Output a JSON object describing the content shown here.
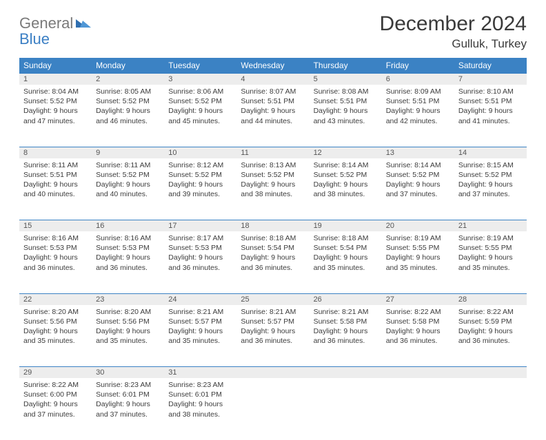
{
  "logo": {
    "line1": "General",
    "line2": "Blue",
    "text_color": "#7a7a7a",
    "accent_color": "#3b7fc4"
  },
  "title": "December 2024",
  "location": "Gulluk, Turkey",
  "colors": {
    "header_bg": "#3b82c4",
    "header_fg": "#ffffff",
    "daynum_bg": "#ededed",
    "row_divider": "#3b82c4",
    "body_text": "#3c3c3c"
  },
  "day_headers": [
    "Sunday",
    "Monday",
    "Tuesday",
    "Wednesday",
    "Thursday",
    "Friday",
    "Saturday"
  ],
  "weeks": [
    [
      {
        "n": "1",
        "sr": "Sunrise: 8:04 AM",
        "ss": "Sunset: 5:52 PM",
        "d1": "Daylight: 9 hours",
        "d2": "and 47 minutes."
      },
      {
        "n": "2",
        "sr": "Sunrise: 8:05 AM",
        "ss": "Sunset: 5:52 PM",
        "d1": "Daylight: 9 hours",
        "d2": "and 46 minutes."
      },
      {
        "n": "3",
        "sr": "Sunrise: 8:06 AM",
        "ss": "Sunset: 5:52 PM",
        "d1": "Daylight: 9 hours",
        "d2": "and 45 minutes."
      },
      {
        "n": "4",
        "sr": "Sunrise: 8:07 AM",
        "ss": "Sunset: 5:51 PM",
        "d1": "Daylight: 9 hours",
        "d2": "and 44 minutes."
      },
      {
        "n": "5",
        "sr": "Sunrise: 8:08 AM",
        "ss": "Sunset: 5:51 PM",
        "d1": "Daylight: 9 hours",
        "d2": "and 43 minutes."
      },
      {
        "n": "6",
        "sr": "Sunrise: 8:09 AM",
        "ss": "Sunset: 5:51 PM",
        "d1": "Daylight: 9 hours",
        "d2": "and 42 minutes."
      },
      {
        "n": "7",
        "sr": "Sunrise: 8:10 AM",
        "ss": "Sunset: 5:51 PM",
        "d1": "Daylight: 9 hours",
        "d2": "and 41 minutes."
      }
    ],
    [
      {
        "n": "8",
        "sr": "Sunrise: 8:11 AM",
        "ss": "Sunset: 5:51 PM",
        "d1": "Daylight: 9 hours",
        "d2": "and 40 minutes."
      },
      {
        "n": "9",
        "sr": "Sunrise: 8:11 AM",
        "ss": "Sunset: 5:52 PM",
        "d1": "Daylight: 9 hours",
        "d2": "and 40 minutes."
      },
      {
        "n": "10",
        "sr": "Sunrise: 8:12 AM",
        "ss": "Sunset: 5:52 PM",
        "d1": "Daylight: 9 hours",
        "d2": "and 39 minutes."
      },
      {
        "n": "11",
        "sr": "Sunrise: 8:13 AM",
        "ss": "Sunset: 5:52 PM",
        "d1": "Daylight: 9 hours",
        "d2": "and 38 minutes."
      },
      {
        "n": "12",
        "sr": "Sunrise: 8:14 AM",
        "ss": "Sunset: 5:52 PM",
        "d1": "Daylight: 9 hours",
        "d2": "and 38 minutes."
      },
      {
        "n": "13",
        "sr": "Sunrise: 8:14 AM",
        "ss": "Sunset: 5:52 PM",
        "d1": "Daylight: 9 hours",
        "d2": "and 37 minutes."
      },
      {
        "n": "14",
        "sr": "Sunrise: 8:15 AM",
        "ss": "Sunset: 5:52 PM",
        "d1": "Daylight: 9 hours",
        "d2": "and 37 minutes."
      }
    ],
    [
      {
        "n": "15",
        "sr": "Sunrise: 8:16 AM",
        "ss": "Sunset: 5:53 PM",
        "d1": "Daylight: 9 hours",
        "d2": "and 36 minutes."
      },
      {
        "n": "16",
        "sr": "Sunrise: 8:16 AM",
        "ss": "Sunset: 5:53 PM",
        "d1": "Daylight: 9 hours",
        "d2": "and 36 minutes."
      },
      {
        "n": "17",
        "sr": "Sunrise: 8:17 AM",
        "ss": "Sunset: 5:53 PM",
        "d1": "Daylight: 9 hours",
        "d2": "and 36 minutes."
      },
      {
        "n": "18",
        "sr": "Sunrise: 8:18 AM",
        "ss": "Sunset: 5:54 PM",
        "d1": "Daylight: 9 hours",
        "d2": "and 36 minutes."
      },
      {
        "n": "19",
        "sr": "Sunrise: 8:18 AM",
        "ss": "Sunset: 5:54 PM",
        "d1": "Daylight: 9 hours",
        "d2": "and 35 minutes."
      },
      {
        "n": "20",
        "sr": "Sunrise: 8:19 AM",
        "ss": "Sunset: 5:55 PM",
        "d1": "Daylight: 9 hours",
        "d2": "and 35 minutes."
      },
      {
        "n": "21",
        "sr": "Sunrise: 8:19 AM",
        "ss": "Sunset: 5:55 PM",
        "d1": "Daylight: 9 hours",
        "d2": "and 35 minutes."
      }
    ],
    [
      {
        "n": "22",
        "sr": "Sunrise: 8:20 AM",
        "ss": "Sunset: 5:56 PM",
        "d1": "Daylight: 9 hours",
        "d2": "and 35 minutes."
      },
      {
        "n": "23",
        "sr": "Sunrise: 8:20 AM",
        "ss": "Sunset: 5:56 PM",
        "d1": "Daylight: 9 hours",
        "d2": "and 35 minutes."
      },
      {
        "n": "24",
        "sr": "Sunrise: 8:21 AM",
        "ss": "Sunset: 5:57 PM",
        "d1": "Daylight: 9 hours",
        "d2": "and 35 minutes."
      },
      {
        "n": "25",
        "sr": "Sunrise: 8:21 AM",
        "ss": "Sunset: 5:57 PM",
        "d1": "Daylight: 9 hours",
        "d2": "and 36 minutes."
      },
      {
        "n": "26",
        "sr": "Sunrise: 8:21 AM",
        "ss": "Sunset: 5:58 PM",
        "d1": "Daylight: 9 hours",
        "d2": "and 36 minutes."
      },
      {
        "n": "27",
        "sr": "Sunrise: 8:22 AM",
        "ss": "Sunset: 5:58 PM",
        "d1": "Daylight: 9 hours",
        "d2": "and 36 minutes."
      },
      {
        "n": "28",
        "sr": "Sunrise: 8:22 AM",
        "ss": "Sunset: 5:59 PM",
        "d1": "Daylight: 9 hours",
        "d2": "and 36 minutes."
      }
    ],
    [
      {
        "n": "29",
        "sr": "Sunrise: 8:22 AM",
        "ss": "Sunset: 6:00 PM",
        "d1": "Daylight: 9 hours",
        "d2": "and 37 minutes."
      },
      {
        "n": "30",
        "sr": "Sunrise: 8:23 AM",
        "ss": "Sunset: 6:01 PM",
        "d1": "Daylight: 9 hours",
        "d2": "and 37 minutes."
      },
      {
        "n": "31",
        "sr": "Sunrise: 8:23 AM",
        "ss": "Sunset: 6:01 PM",
        "d1": "Daylight: 9 hours",
        "d2": "and 38 minutes."
      },
      null,
      null,
      null,
      null
    ]
  ]
}
